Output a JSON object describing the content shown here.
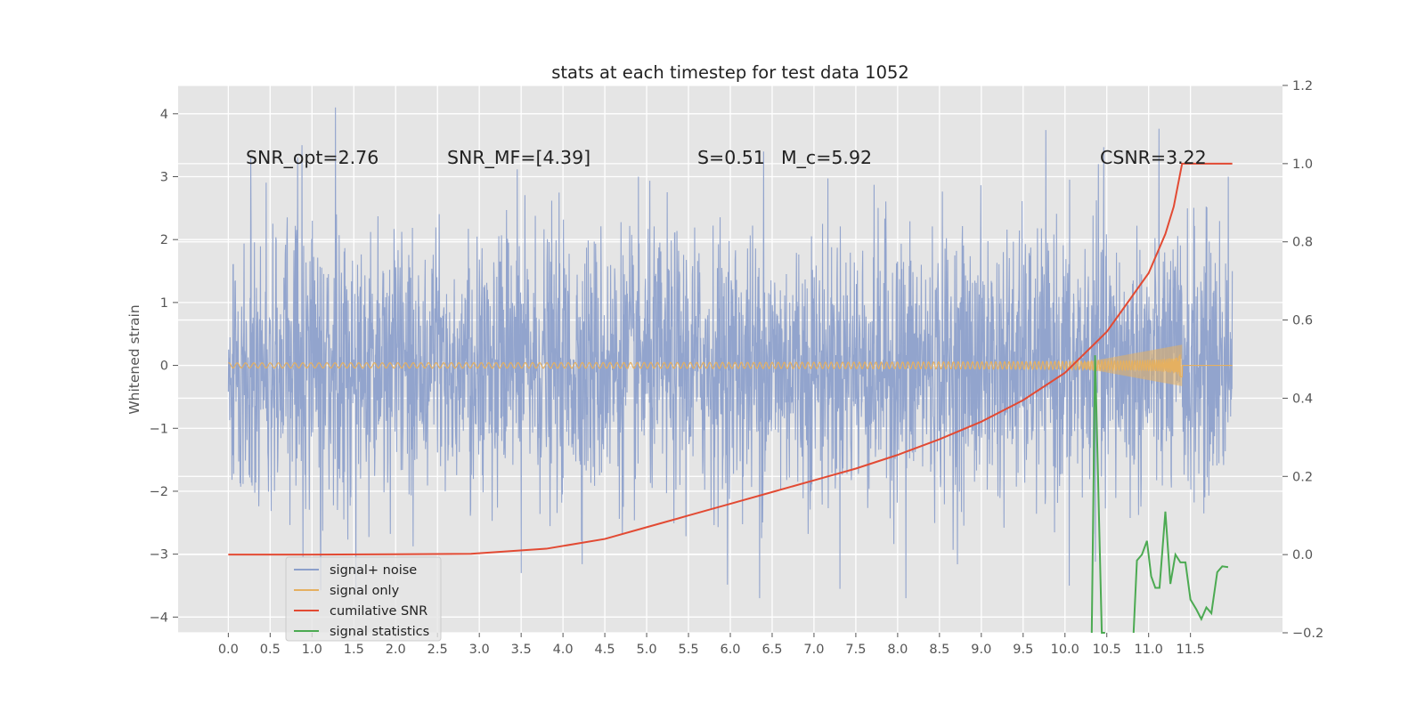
{
  "chart_data": {
    "type": "line",
    "title": "stats at each timestep for test data 1052",
    "ylabel": "Whitened strain",
    "xlabel": "",
    "xlim": [
      -0.6,
      12.6
    ],
    "ylim": [
      -4.25,
      4.45
    ],
    "y2lim": [
      -0.2,
      1.2
    ],
    "x_ticks": [
      "0.0",
      "0.5",
      "1.0",
      "1.5",
      "2.0",
      "2.5",
      "3.0",
      "3.5",
      "4.0",
      "4.5",
      "5.0",
      "5.5",
      "6.0",
      "6.5",
      "7.0",
      "7.5",
      "8.0",
      "8.5",
      "9.0",
      "9.5",
      "10.0",
      "10.5",
      "11.0",
      "11.5"
    ],
    "y_ticks": [
      "4",
      "3",
      "2",
      "1",
      "0",
      "−1",
      "−2",
      "−3",
      "−4"
    ],
    "y2_ticks": [
      "1.2",
      "1.0",
      "0.8",
      "0.6",
      "0.4",
      "0.2",
      "0.0",
      "−0.2"
    ],
    "grid": true,
    "legend_placement": "lower-left",
    "annotations": [
      {
        "id": "snr-opt",
        "text": "SNR_opt=2.76"
      },
      {
        "id": "snr-mf",
        "text": "SNR_MF=[4.39]"
      },
      {
        "id": "s-value",
        "text": "S=0.51"
      },
      {
        "id": "mc-value",
        "text": "M_c=5.92"
      },
      {
        "id": "csnr",
        "text": "CSNR=3.22"
      }
    ],
    "series": [
      {
        "name": "signal+ noise",
        "color": "#8da0cb",
        "axis": "left",
        "style": "noise",
        "x_range": [
          0.0,
          12.0
        ],
        "noise_std": 1.0,
        "visible_extremes": [
          {
            "x": 0.27,
            "y": 3.3
          },
          {
            "x": 0.83,
            "y": 3.3
          },
          {
            "x": 0.88,
            "y": 3.5
          },
          {
            "x": 1.28,
            "y": 4.1
          },
          {
            "x": 3.5,
            "y": -3.3
          },
          {
            "x": 6.35,
            "y": -3.7
          },
          {
            "x": 6.4,
            "y": 3.4
          },
          {
            "x": 8.1,
            "y": -3.7
          },
          {
            "x": 10.05,
            "y": -3.5
          },
          {
            "x": 10.4,
            "y": 3.2
          },
          {
            "x": 11.95,
            "y": 3.0
          }
        ]
      },
      {
        "name": "signal only",
        "color": "#e5b061",
        "axis": "left",
        "style": "chirp",
        "x_range": [
          0.0,
          12.0
        ],
        "chirp_end_time": 11.4,
        "max_amplitude": 0.33
      },
      {
        "name": "cumilative SNR",
        "color": "#e24a33",
        "axis": "right",
        "x": [
          0.0,
          1.0,
          2.0,
          2.9,
          3.8,
          4.5,
          5.0,
          5.5,
          6.0,
          6.5,
          7.0,
          7.5,
          8.0,
          8.5,
          9.0,
          9.5,
          10.0,
          10.5,
          11.0,
          11.2,
          11.3,
          11.4,
          11.5,
          11.7,
          12.0
        ],
        "y": [
          0.0,
          0.0,
          0.001,
          0.002,
          0.015,
          0.04,
          0.07,
          0.1,
          0.13,
          0.16,
          0.19,
          0.22,
          0.255,
          0.295,
          0.34,
          0.395,
          0.465,
          0.57,
          0.72,
          0.82,
          0.89,
          1.0,
          1.0,
          1.0,
          1.0
        ]
      },
      {
        "name": "signal statistics",
        "color": "#4caa52",
        "axis": "right",
        "x": [
          10.32,
          10.36,
          10.44,
          10.48,
          10.82,
          10.86,
          10.92,
          10.98,
          11.03,
          11.08,
          11.13,
          11.2,
          11.26,
          11.32,
          11.38,
          11.44,
          11.5,
          11.57,
          11.63,
          11.69,
          11.75,
          11.82,
          11.88,
          11.95
        ],
        "y": [
          -0.2,
          0.51,
          -0.2,
          -0.2,
          -0.2,
          -0.015,
          0.0,
          0.035,
          -0.055,
          -0.085,
          -0.085,
          0.11,
          -0.075,
          0.0,
          -0.02,
          -0.02,
          -0.115,
          -0.14,
          -0.165,
          -0.135,
          -0.15,
          -0.045,
          -0.03,
          -0.032
        ]
      }
    ]
  }
}
